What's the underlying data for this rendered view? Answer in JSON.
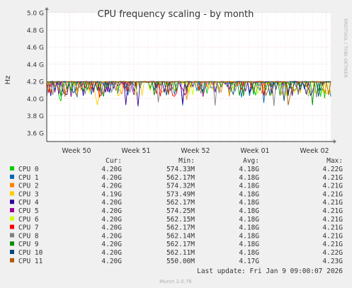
{
  "chart_data": {
    "type": "line",
    "title": "CPU frequency scaling - by month",
    "ylabel": "Hz",
    "side_label": "RRDTOOL / TOBI OETIKER",
    "footer": "Munin 2.0.76",
    "ylim": [
      3.5,
      5.0
    ],
    "yticks": [
      {
        "value": 3.6,
        "label": "3.6 G"
      },
      {
        "value": 3.8,
        "label": "3.8 G"
      },
      {
        "value": 4.0,
        "label": "4.0 G"
      },
      {
        "value": 4.2,
        "label": "4.2 G"
      },
      {
        "value": 4.4,
        "label": "4.4 G"
      },
      {
        "value": 4.6,
        "label": "4.6 G"
      },
      {
        "value": 4.8,
        "label": "4.8 G"
      },
      {
        "value": 5.0,
        "label": "5.0 G"
      }
    ],
    "xticks": [
      "Week 50",
      "Week 51",
      "Week 52",
      "Week 01",
      "Week 02"
    ],
    "grid": true,
    "legend_headers": {
      "cur": "Cur:",
      "min": "Min:",
      "avg": "Avg:",
      "max": "Max:"
    },
    "series": [
      {
        "name": "CPU 0",
        "color": "#00cc00",
        "cur": "4.20G",
        "min": "574.33M",
        "avg": "4.18G",
        "max": "4.22G"
      },
      {
        "name": "CPU 1",
        "color": "#0066b3",
        "cur": "4.20G",
        "min": "562.17M",
        "avg": "4.18G",
        "max": "4.21G"
      },
      {
        "name": "CPU 2",
        "color": "#ff8000",
        "cur": "4.20G",
        "min": "574.32M",
        "avg": "4.18G",
        "max": "4.21G"
      },
      {
        "name": "CPU 3",
        "color": "#ffcc00",
        "cur": "4.19G",
        "min": "573.49M",
        "avg": "4.18G",
        "max": "4.21G"
      },
      {
        "name": "CPU 4",
        "color": "#330099",
        "cur": "4.20G",
        "min": "562.17M",
        "avg": "4.18G",
        "max": "4.21G"
      },
      {
        "name": "CPU 5",
        "color": "#990099",
        "cur": "4.20G",
        "min": "574.25M",
        "avg": "4.18G",
        "max": "4.21G"
      },
      {
        "name": "CPU 6",
        "color": "#ccff00",
        "cur": "4.20G",
        "min": "562.15M",
        "avg": "4.18G",
        "max": "4.21G"
      },
      {
        "name": "CPU 7",
        "color": "#ff0000",
        "cur": "4.20G",
        "min": "562.17M",
        "avg": "4.18G",
        "max": "4.21G"
      },
      {
        "name": "CPU 8",
        "color": "#808080",
        "cur": "4.20G",
        "min": "562.14M",
        "avg": "4.18G",
        "max": "4.21G"
      },
      {
        "name": "CPU 9",
        "color": "#008f00",
        "cur": "4.20G",
        "min": "562.17M",
        "avg": "4.18G",
        "max": "4.21G"
      },
      {
        "name": "CPU 10",
        "color": "#00487d",
        "cur": "4.20G",
        "min": "562.11M",
        "avg": "4.18G",
        "max": "4.22G"
      },
      {
        "name": "CPU 11",
        "color": "#b35a00",
        "cur": "4.20G",
        "min": "550.00M",
        "avg": "4.17G",
        "max": "4.23G"
      }
    ],
    "last_update": "Last update: Fri Jan  9 09:00:07 2026"
  }
}
